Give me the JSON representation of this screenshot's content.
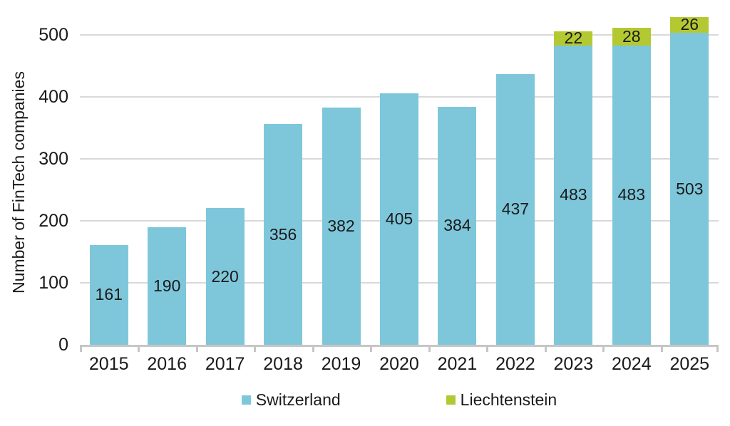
{
  "chart_data": {
    "type": "bar",
    "stacked": true,
    "ylabel": "Number of FinTech companies",
    "xlabel": "",
    "categories": [
      "2015",
      "2016",
      "2017",
      "2018",
      "2019",
      "2020",
      "2021",
      "2022",
      "2023",
      "2024",
      "2025"
    ],
    "series": [
      {
        "name": "Switzerland",
        "color": "#7ec7db",
        "values": [
          161,
          190,
          220,
          356,
          382,
          405,
          384,
          437,
          483,
          483,
          503
        ]
      },
      {
        "name": "Liechtenstein",
        "color": "#b4c931",
        "values": [
          0,
          0,
          0,
          0,
          0,
          0,
          0,
          0,
          22,
          28,
          26
        ]
      }
    ],
    "ylim": [
      0,
      533
    ],
    "yticks": [
      0,
      100,
      200,
      300,
      400,
      500
    ],
    "grid": true,
    "legend_position": "bottom",
    "value_labels": "inside-center"
  },
  "colors": {
    "grid": "#d9d9d9",
    "axis": "#c6c6c6",
    "text": "#1a1a1a"
  }
}
